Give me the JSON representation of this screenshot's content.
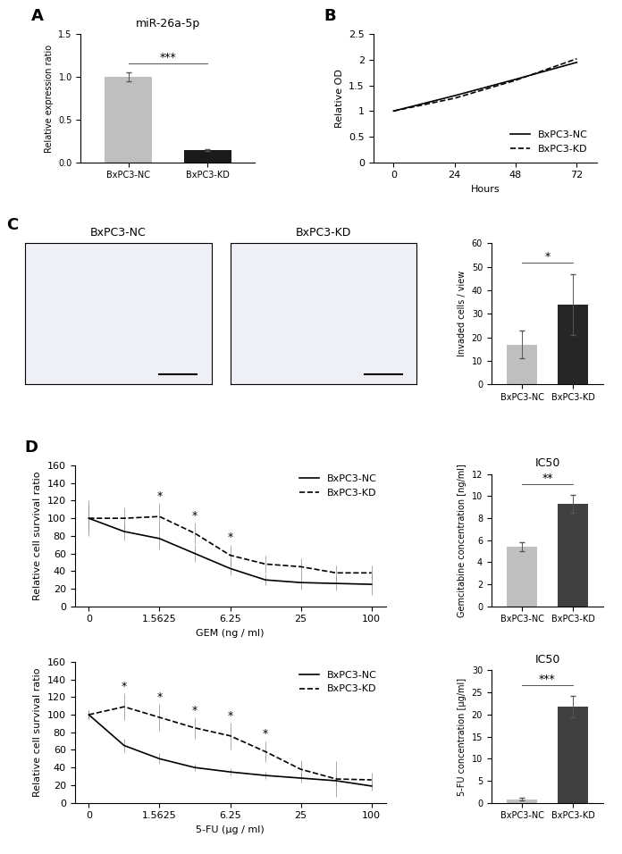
{
  "chart_data": [
    {
      "panel": "A",
      "type": "bar",
      "title": "miR-26a-5p",
      "categories": [
        "BxPC3-NC",
        "BxPC3-KD"
      ],
      "values": [
        1.0,
        0.14
      ],
      "errors": [
        0.05,
        0.01
      ],
      "colors": [
        "#bfbfbf",
        "#1a1a1a"
      ],
      "y_label": "Relative expression ratio",
      "ylim": [
        0,
        1.5
      ],
      "yticks": [
        {
          "value": 0,
          "label": "0.0"
        },
        {
          "value": 0.5,
          "label": "0.5"
        },
        {
          "value": 1.0,
          "label": "1.0"
        },
        {
          "value": 1.5,
          "label": "1.5"
        }
      ],
      "significance": "***"
    },
    {
      "panel": "B",
      "type": "line",
      "x_label": "Hours",
      "y_label": "Relative OD",
      "x": [
        0,
        24,
        48,
        72
      ],
      "series": [
        {
          "name": "BxPC3-NC",
          "color": "#000000",
          "line_style": "solid",
          "values": [
            1.0,
            1.3,
            1.62,
            1.95
          ]
        },
        {
          "name": "BxPC3-KD",
          "color": "#000000",
          "line_style": "dashed",
          "values": [
            1.0,
            1.25,
            1.6,
            2.02
          ]
        }
      ],
      "xlim": [
        -8,
        80
      ],
      "xticks": [
        0,
        24,
        48,
        72
      ],
      "ylim": [
        0,
        2.5
      ],
      "yticks": [
        0,
        0.5,
        1,
        1.5,
        2,
        2.5
      ],
      "legend": "lower right"
    },
    {
      "panel": "C",
      "type": "image",
      "title": "BxPC3-NC"
    },
    {
      "type": "image",
      "title": "BxPC3-KD"
    },
    {
      "type": "bar",
      "categories": [
        "BxPC3-NC",
        "BxPC3-KD"
      ],
      "values": [
        17,
        34
      ],
      "errors": [
        6,
        13
      ],
      "colors": [
        "#bfbfbf",
        "#262626"
      ],
      "y_label": "Invaded cells / view",
      "ylim": [
        0,
        60
      ],
      "yticks": [
        0,
        10,
        20,
        30,
        40,
        50,
        60
      ],
      "significance": "*"
    },
    {
      "panel": "D",
      "type": "line",
      "x_label": "GEM (ng / ml)",
      "y_label": "Relative cell survival ratio",
      "categories": [
        "0",
        null,
        "1.5625",
        null,
        "6.25",
        null,
        "25",
        null,
        "100"
      ],
      "series": [
        {
          "name": "BxPC3-NC",
          "color": "#000000",
          "line_style": "solid",
          "values": [
            100,
            85,
            77,
            60,
            43,
            30,
            27,
            26,
            25
          ],
          "errors": [
            20,
            10,
            12,
            10,
            8,
            6,
            8,
            8,
            12
          ]
        },
        {
          "name": "BxPC3-KD",
          "color": "#000000",
          "line_style": "dashed",
          "values": [
            100,
            100,
            102,
            83,
            58,
            48,
            45,
            38,
            38
          ],
          "errors": [
            15,
            12,
            15,
            12,
            12,
            10,
            10,
            8,
            8
          ]
        }
      ],
      "ylim": [
        0,
        160
      ],
      "yticks": [
        0,
        20,
        40,
        60,
        80,
        100,
        120,
        140,
        160
      ],
      "legend": "upper right",
      "annotations": [
        {
          "text": "*",
          "index": 2
        },
        {
          "text": "*",
          "index": 3
        },
        {
          "text": "*",
          "index": 4
        }
      ]
    },
    {
      "type": "bar",
      "title": "IC50",
      "categories": [
        "BxPC3-NC",
        "BxPC3-KD"
      ],
      "values": [
        5.4,
        9.3
      ],
      "errors": [
        0.4,
        0.8
      ],
      "colors": [
        "#bfbfbf",
        "#404040"
      ],
      "y_label": "Gemcitabine concentration [ng/ml]",
      "ylim": [
        0,
        12
      ],
      "yticks": [
        0,
        2,
        4,
        6,
        8,
        10,
        12
      ],
      "significance": "**"
    },
    {
      "type": "line",
      "x_label": "5-FU (μg / ml)",
      "y_label": "Relative cell survival ratio",
      "categories": [
        "0",
        null,
        "1.5625",
        null,
        "6.25",
        null,
        "25",
        null,
        "100"
      ],
      "series": [
        {
          "name": "BxPC3-NC",
          "color": "#000000",
          "line_style": "solid",
          "values": [
            100,
            65,
            50,
            40,
            35,
            31,
            28,
            25,
            19
          ],
          "errors": [
            5,
            8,
            6,
            4,
            4,
            4,
            5,
            6,
            5
          ]
        },
        {
          "name": "BxPC3-KD",
          "color": "#000000",
          "line_style": "dashed",
          "values": [
            100,
            109,
            97,
            85,
            76,
            58,
            38,
            27,
            26
          ],
          "errors": [
            5,
            15,
            15,
            12,
            15,
            12,
            10,
            20,
            8
          ]
        }
      ],
      "ylim": [
        0,
        160
      ],
      "yticks": [
        0,
        20,
        40,
        60,
        80,
        100,
        120,
        140,
        160
      ],
      "legend": "upper right",
      "annotations": [
        {
          "text": "*",
          "index": 1
        },
        {
          "text": "*",
          "index": 2
        },
        {
          "text": "*",
          "index": 3
        },
        {
          "text": "*",
          "index": 4
        },
        {
          "text": "*",
          "index": 5
        }
      ]
    },
    {
      "type": "bar",
      "title": "IC50",
      "categories": [
        "BxPC3-NC",
        "BxPC3-KD"
      ],
      "values": [
        0.8,
        21.8
      ],
      "errors": [
        0.3,
        2.5
      ],
      "colors": [
        "#bfbfbf",
        "#404040"
      ],
      "y_label": "5-FU concentration [μg/ml]",
      "ylim": [
        0,
        30
      ],
      "yticks": [
        0,
        5,
        10,
        15,
        20,
        25,
        30
      ],
      "significance": "***"
    }
  ]
}
